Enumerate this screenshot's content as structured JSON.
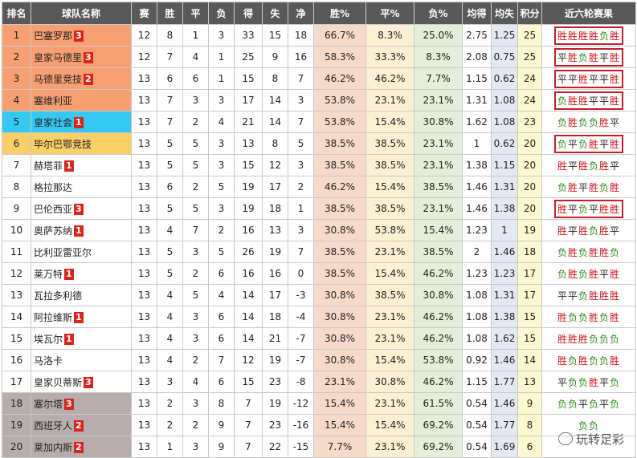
{
  "columns": [
    "排名",
    "球队名称",
    "赛",
    "胜",
    "平",
    "负",
    "得",
    "失",
    "净",
    "胜%",
    "平%",
    "负%",
    "均得",
    "均失",
    "积分",
    "近六轮赛果"
  ],
  "colors": {
    "header": "#595959",
    "zone_champions": "#f79f71",
    "zone_europa": "#35c8f0",
    "zone_conference": "#fbcf68",
    "zone_relegation": "#b7adad",
    "highlight_box": "#c0202a",
    "badge": "#d9261c"
  },
  "rows": [
    {
      "rank": "1",
      "team": "巴塞罗那",
      "badge": "3",
      "zone": "cl",
      "p": "12",
      "w": "8",
      "d": "1",
      "l": "3",
      "gf": "33",
      "ga": "15",
      "gd": "18",
      "wp": "66.7%",
      "dp": "8.3%",
      "lp": "25.0%",
      "avgf": "2.75",
      "avga": "1.25",
      "pts": "25",
      "recent": [
        "胜",
        "胜",
        "胜",
        "胜",
        "负",
        "胜"
      ],
      "boxed": true
    },
    {
      "rank": "2",
      "team": "皇家马德里",
      "badge": "3",
      "zone": "cl",
      "p": "12",
      "w": "7",
      "d": "4",
      "l": "1",
      "gf": "25",
      "ga": "9",
      "gd": "16",
      "wp": "58.3%",
      "dp": "33.3%",
      "lp": "8.3%",
      "avgf": "2.08",
      "avga": "0.75",
      "pts": "25",
      "recent": [
        "平",
        "胜",
        "负",
        "胜",
        "平",
        "胜"
      ],
      "boxed": true
    },
    {
      "rank": "3",
      "team": "马德里竞技",
      "badge": "2",
      "zone": "cl",
      "p": "13",
      "w": "6",
      "d": "6",
      "l": "1",
      "gf": "15",
      "ga": "8",
      "gd": "7",
      "wp": "46.2%",
      "dp": "46.2%",
      "lp": "7.7%",
      "avgf": "1.15",
      "avga": "0.62",
      "pts": "24",
      "recent": [
        "平",
        "平",
        "胜",
        "平",
        "平",
        "胜"
      ],
      "boxed": true
    },
    {
      "rank": "4",
      "team": "塞维利亚",
      "badge": "",
      "zone": "cl",
      "p": "13",
      "w": "7",
      "d": "3",
      "l": "3",
      "gf": "17",
      "ga": "14",
      "gd": "3",
      "wp": "53.8%",
      "dp": "23.1%",
      "lp": "23.1%",
      "avgf": "1.31",
      "avga": "1.08",
      "pts": "24",
      "recent": [
        "负",
        "胜",
        "胜",
        "平",
        "平",
        "胜"
      ],
      "boxed": true
    },
    {
      "rank": "5",
      "team": "皇家社会",
      "badge": "1",
      "zone": "el",
      "p": "13",
      "w": "7",
      "d": "2",
      "l": "4",
      "gf": "21",
      "ga": "14",
      "gd": "7",
      "wp": "53.8%",
      "dp": "15.4%",
      "lp": "30.8%",
      "avgf": "1.62",
      "avga": "1.08",
      "pts": "23",
      "recent": [
        "负",
        "胜",
        "负",
        "负",
        "胜",
        "平"
      ],
      "boxed": false
    },
    {
      "rank": "6",
      "team": "毕尔巴鄂竞技",
      "badge": "",
      "zone": "conf",
      "p": "13",
      "w": "5",
      "d": "5",
      "l": "3",
      "gf": "13",
      "ga": "8",
      "gd": "5",
      "wp": "38.5%",
      "dp": "38.5%",
      "lp": "23.1%",
      "avgf": "1",
      "avga": "0.62",
      "pts": "20",
      "recent": [
        "负",
        "平",
        "负",
        "胜",
        "平",
        "胜"
      ],
      "boxed": true
    },
    {
      "rank": "7",
      "team": "赫塔菲",
      "badge": "1",
      "zone": "",
      "p": "13",
      "w": "5",
      "d": "5",
      "l": "3",
      "gf": "15",
      "ga": "12",
      "gd": "3",
      "wp": "38.5%",
      "dp": "38.5%",
      "lp": "23.1%",
      "avgf": "1.38",
      "avga": "1.15",
      "pts": "20",
      "recent": [
        "胜",
        "平",
        "胜",
        "负",
        "胜",
        "平"
      ],
      "boxed": false
    },
    {
      "rank": "8",
      "team": "格拉那达",
      "badge": "",
      "zone": "",
      "p": "13",
      "w": "6",
      "d": "2",
      "l": "5",
      "gf": "19",
      "ga": "17",
      "gd": "2",
      "wp": "46.2%",
      "dp": "15.4%",
      "lp": "38.5%",
      "avgf": "1.46",
      "avga": "1.31",
      "pts": "20",
      "recent": [
        "负",
        "胜",
        "平",
        "胜",
        "负",
        "胜"
      ],
      "boxed": false
    },
    {
      "rank": "9",
      "team": "巴伦西亚",
      "badge": "3",
      "zone": "",
      "p": "13",
      "w": "5",
      "d": "5",
      "l": "3",
      "gf": "19",
      "ga": "18",
      "gd": "1",
      "wp": "38.5%",
      "dp": "38.5%",
      "lp": "23.1%",
      "avgf": "1.46",
      "avga": "1.38",
      "pts": "20",
      "recent": [
        "胜",
        "平",
        "负",
        "平",
        "胜",
        "胜"
      ],
      "boxed": true
    },
    {
      "rank": "10",
      "team": "奥萨苏纳",
      "badge": "1",
      "zone": "",
      "p": "13",
      "w": "4",
      "d": "7",
      "l": "2",
      "gf": "16",
      "ga": "13",
      "gd": "3",
      "wp": "30.8%",
      "dp": "53.8%",
      "lp": "15.4%",
      "avgf": "1.23",
      "avga": "1",
      "pts": "19",
      "recent": [
        "胜",
        "平",
        "胜",
        "负",
        "胜",
        "平"
      ],
      "boxed": false
    },
    {
      "rank": "11",
      "team": "比利亚雷亚尔",
      "badge": "",
      "zone": "",
      "p": "13",
      "w": "5",
      "d": "3",
      "l": "5",
      "gf": "26",
      "ga": "19",
      "gd": "7",
      "wp": "38.5%",
      "dp": "23.1%",
      "lp": "38.5%",
      "avgf": "2",
      "avga": "1.46",
      "pts": "18",
      "recent": [
        "负",
        "胜",
        "负",
        "胜",
        "胜",
        "负"
      ],
      "boxed": false
    },
    {
      "rank": "12",
      "team": "莱万特",
      "badge": "1",
      "zone": "",
      "p": "13",
      "w": "5",
      "d": "2",
      "l": "6",
      "gf": "16",
      "ga": "16",
      "gd": "0",
      "wp": "38.5%",
      "dp": "15.4%",
      "lp": "46.2%",
      "avgf": "1.23",
      "avga": "1.23",
      "pts": "17",
      "recent": [
        "负",
        "胜",
        "负",
        "胜",
        "平",
        "胜"
      ],
      "boxed": false
    },
    {
      "rank": "13",
      "team": "瓦拉多利德",
      "badge": "",
      "zone": "",
      "p": "13",
      "w": "4",
      "d": "5",
      "l": "4",
      "gf": "14",
      "ga": "17",
      "gd": "-3",
      "wp": "30.8%",
      "dp": "38.5%",
      "lp": "30.8%",
      "avgf": "1.08",
      "avga": "1.31",
      "pts": "17",
      "recent": [
        "平",
        "平",
        "负",
        "胜",
        "胜",
        "胜"
      ],
      "boxed": false
    },
    {
      "rank": "14",
      "team": "阿拉维斯",
      "badge": "1",
      "zone": "",
      "p": "13",
      "w": "4",
      "d": "3",
      "l": "6",
      "gf": "14",
      "ga": "18",
      "gd": "-4",
      "wp": "30.8%",
      "dp": "23.1%",
      "lp": "46.2%",
      "avgf": "1.08",
      "avga": "1.38",
      "pts": "15",
      "recent": [
        "胜",
        "负",
        "负",
        "胜",
        "负",
        "胜"
      ],
      "boxed": false
    },
    {
      "rank": "15",
      "team": "埃瓦尔",
      "badge": "1",
      "zone": "",
      "p": "13",
      "w": "4",
      "d": "3",
      "l": "6",
      "gf": "14",
      "ga": "21",
      "gd": "-7",
      "wp": "30.8%",
      "dp": "23.1%",
      "lp": "46.2%",
      "avgf": "1.08",
      "avga": "1.62",
      "pts": "15",
      "recent": [
        "胜",
        "胜",
        "胜",
        "负",
        "负",
        "负"
      ],
      "boxed": false
    },
    {
      "rank": "16",
      "team": "马洛卡",
      "badge": "",
      "zone": "",
      "p": "13",
      "w": "4",
      "d": "2",
      "l": "7",
      "gf": "12",
      "ga": "19",
      "gd": "-7",
      "wp": "30.8%",
      "dp": "15.4%",
      "lp": "53.8%",
      "avgf": "0.92",
      "avga": "1.46",
      "pts": "14",
      "recent": [
        "胜",
        "负",
        "胜",
        "负",
        "负",
        "胜"
      ],
      "boxed": false
    },
    {
      "rank": "17",
      "team": "皇家贝蒂斯",
      "badge": "3",
      "zone": "",
      "p": "13",
      "w": "3",
      "d": "4",
      "l": "6",
      "gf": "15",
      "ga": "23",
      "gd": "-8",
      "wp": "23.1%",
      "dp": "30.8%",
      "lp": "46.2%",
      "avgf": "1.15",
      "avga": "1.77",
      "pts": "13",
      "recent": [
        "平",
        "负",
        "负",
        "胜",
        "平",
        "负"
      ],
      "boxed": false
    },
    {
      "rank": "18",
      "team": "塞尔塔",
      "badge": "3",
      "zone": "rel",
      "p": "13",
      "w": "2",
      "d": "3",
      "l": "8",
      "gf": "7",
      "ga": "19",
      "gd": "-12",
      "wp": "15.4%",
      "dp": "23.1%",
      "lp": "61.5%",
      "avgf": "0.54",
      "avga": "1.46",
      "pts": "9",
      "recent": [
        "负",
        "负",
        "平",
        "负",
        "平",
        "负"
      ],
      "boxed": false
    },
    {
      "rank": "19",
      "team": "西班牙人",
      "badge": "2",
      "zone": "rel",
      "p": "13",
      "w": "2",
      "d": "2",
      "l": "9",
      "gf": "7",
      "ga": "23",
      "gd": "-16",
      "wp": "15.4%",
      "dp": "15.4%",
      "lp": "69.2%",
      "avgf": "0.54",
      "avga": "1.77",
      "pts": "8",
      "recent": [
        "负",
        "负",
        "",
        "",
        "",
        ""
      ],
      "boxed": false
    },
    {
      "rank": "20",
      "team": "莱加内斯",
      "badge": "2",
      "zone": "rel",
      "p": "13",
      "w": "1",
      "d": "3",
      "l": "9",
      "gf": "7",
      "ga": "22",
      "gd": "-15",
      "wp": "7.7%",
      "dp": "23.1%",
      "lp": "69.2%",
      "avgf": "0.54",
      "avga": "1.69",
      "pts": "6",
      "recent": [
        "",
        "",
        "",
        "",
        "",
        ""
      ],
      "boxed": false
    }
  ],
  "watermark": "玩转足彩"
}
